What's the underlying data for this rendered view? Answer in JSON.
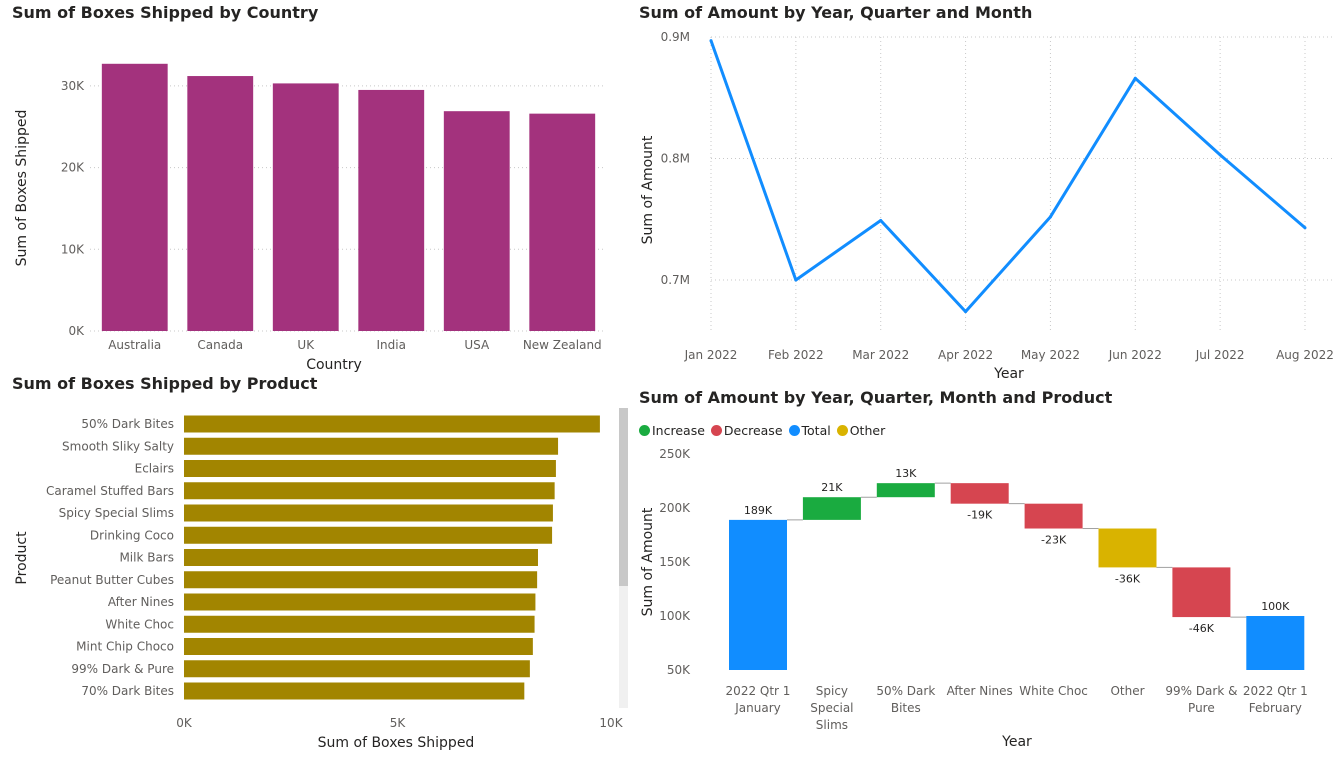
{
  "colors": {
    "bar1": "#A3327D",
    "bar2": "#A28500",
    "line": "#118DFF",
    "increase": "#1AAB40",
    "decrease": "#D64550",
    "total": "#118DFF",
    "other": "#D9B300",
    "grid": "#c8c8c8",
    "text": "#605E5C"
  },
  "chart_data": [
    {
      "id": "country",
      "type": "bar",
      "title": "Sum of Boxes Shipped by Country",
      "xlabel": "Country",
      "ylabel": "Sum of Boxes Shipped",
      "categories": [
        "Australia",
        "Canada",
        "UK",
        "India",
        "USA",
        "New Zealand"
      ],
      "values": [
        32700,
        31200,
        30300,
        29500,
        26900,
        26600
      ],
      "yticks": [
        0,
        10000,
        20000,
        30000
      ],
      "ytick_labels": [
        "0K",
        "10K",
        "20K",
        "30K"
      ],
      "ylim": [
        0,
        35000
      ],
      "grid": true
    },
    {
      "id": "amount_line",
      "type": "line",
      "title": "Sum of Amount by Year, Quarter and Month",
      "xlabel": "Year",
      "ylabel": "Sum of Amount",
      "x": [
        "Jan 2022",
        "Feb 2022",
        "Mar 2022",
        "Apr 2022",
        "May 2022",
        "Jun 2022",
        "Jul 2022",
        "Aug 2022"
      ],
      "values": [
        897000,
        700000,
        749000,
        674000,
        752000,
        866000,
        803000,
        743000
      ],
      "yticks": [
        700000,
        800000,
        900000
      ],
      "ytick_labels": [
        "0.7M",
        "0.8M",
        "0.9M"
      ],
      "ylim": [
        650000,
        900000
      ],
      "grid": true
    },
    {
      "id": "product",
      "type": "bar",
      "orientation": "horizontal",
      "title": "Sum of Boxes Shipped by Product",
      "xlabel": "Sum of Boxes Shipped",
      "ylabel": "Product",
      "categories": [
        "50% Dark Bites",
        "Smooth Sliky Salty",
        "Eclairs",
        "Caramel Stuffed Bars",
        "Spicy Special Slims",
        "Drinking Coco",
        "Milk Bars",
        "Peanut Butter Cubes",
        "After Nines",
        "White Choc",
        "Mint Chip Choco",
        "99% Dark & Pure",
        "70% Dark Bites"
      ],
      "values": [
        9740,
        8760,
        8710,
        8680,
        8640,
        8620,
        8290,
        8270,
        8230,
        8210,
        8170,
        8100,
        7970
      ],
      "xticks": [
        0,
        5000,
        10000
      ],
      "xtick_labels": [
        "0K",
        "5K",
        "10K"
      ],
      "xlim": [
        0,
        10000
      ],
      "grid": false
    },
    {
      "id": "waterfall",
      "type": "waterfall",
      "title": "Sum of Amount by Year, Quarter, Month and Product",
      "xlabel": "Year",
      "ylabel": "Sum of Amount",
      "legend": [
        {
          "label": "Increase",
          "kind": "increase"
        },
        {
          "label": "Decrease",
          "kind": "decrease"
        },
        {
          "label": "Total",
          "kind": "total"
        },
        {
          "label": "Other",
          "kind": "other"
        }
      ],
      "steps": [
        {
          "label": [
            "2022 Qtr 1",
            "January"
          ],
          "kind": "total",
          "start": 0,
          "end": 189000,
          "text": "189K"
        },
        {
          "label": [
            "Spicy",
            "Special",
            "Slims"
          ],
          "kind": "increase",
          "start": 189000,
          "end": 210000,
          "text": "21K"
        },
        {
          "label": [
            "50% Dark",
            "Bites"
          ],
          "kind": "increase",
          "start": 210000,
          "end": 223000,
          "text": "13K"
        },
        {
          "label": [
            "After Nines"
          ],
          "kind": "decrease",
          "start": 223000,
          "end": 204000,
          "text": "-19K"
        },
        {
          "label": [
            "White Choc"
          ],
          "kind": "decrease",
          "start": 204000,
          "end": 181000,
          "text": "-23K"
        },
        {
          "label": [
            "Other"
          ],
          "kind": "other",
          "start": 181000,
          "end": 145000,
          "text": "-36K"
        },
        {
          "label": [
            "99% Dark &",
            "Pure"
          ],
          "kind": "decrease",
          "start": 145000,
          "end": 99000,
          "text": "-46K"
        },
        {
          "label": [
            "2022 Qtr 1",
            "February"
          ],
          "kind": "total",
          "start": 0,
          "end": 100000,
          "text": "100K"
        }
      ],
      "yticks": [
        50000,
        100000,
        150000,
        200000,
        250000
      ],
      "ytick_labels": [
        "50K",
        "100K",
        "150K",
        "200K",
        "250K"
      ],
      "ylim": [
        50000,
        250000
      ],
      "legend_position": "top-left"
    }
  ]
}
